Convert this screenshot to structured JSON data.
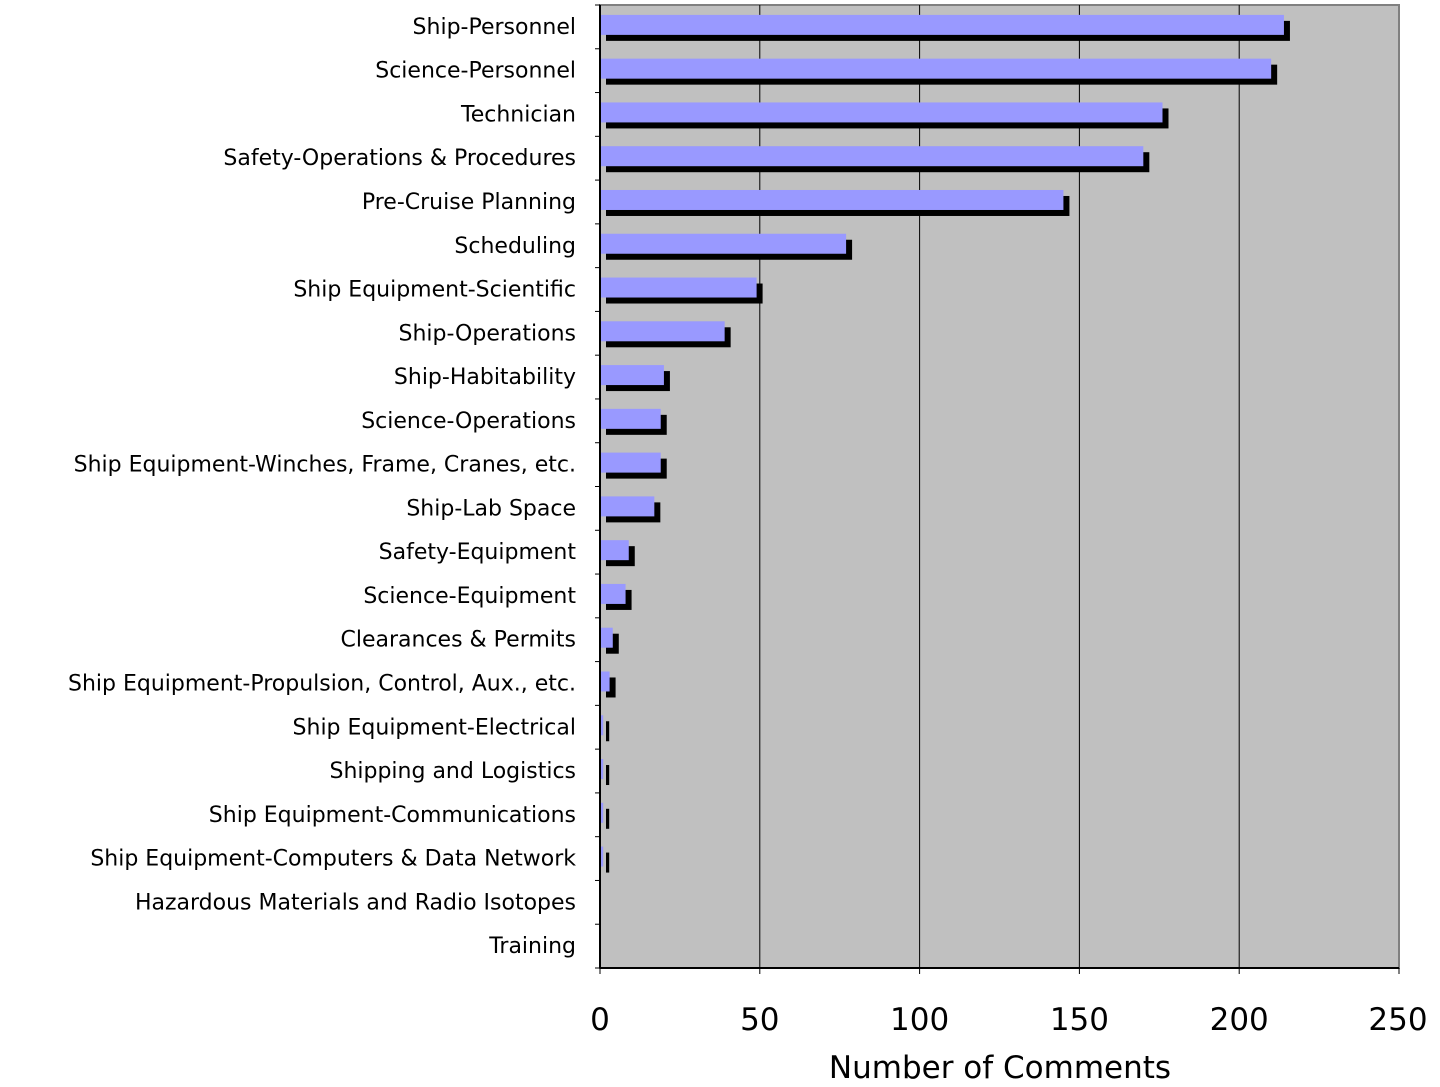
{
  "chart_data": {
    "type": "bar",
    "orientation": "horizontal",
    "categories": [
      "Ship-Personnel",
      "Science-Personnel",
      "Technician",
      "Safety-Operations & Procedures",
      "Pre-Cruise Planning",
      "Scheduling",
      "Ship Equipment-Scientific",
      "Ship-Operations",
      "Ship-Habitability",
      "Science-Operations",
      "Ship Equipment-Winches, Frame, Cranes, etc.",
      "Ship-Lab Space",
      "Safety-Equipment",
      "Science-Equipment",
      "Clearances & Permits",
      "Ship Equipment-Propulsion, Control, Aux., etc.",
      "Ship Equipment-Electrical",
      "Shipping and Logistics",
      "Ship Equipment-Communications",
      "Ship Equipment-Computers & Data Network",
      "Hazardous Materials and Radio Isotopes",
      "Training"
    ],
    "values": [
      214,
      210,
      176,
      170,
      145,
      77,
      49,
      39,
      20,
      19,
      19,
      17,
      9,
      8,
      4,
      3,
      1,
      1,
      1,
      1,
      0,
      0
    ],
    "xlabel": "Number of Comments",
    "ylabel": "",
    "xlim": [
      0,
      250
    ],
    "xticks": [
      "0",
      "50",
      "100",
      "150",
      "200",
      "250"
    ],
    "grid": "vertical",
    "legend": "none",
    "colors": {
      "bar": "#9999ff",
      "bar_shadow": "#000000",
      "plot_background": "#c0c0c0",
      "gridline": "#000000",
      "axis": "#000000"
    }
  }
}
